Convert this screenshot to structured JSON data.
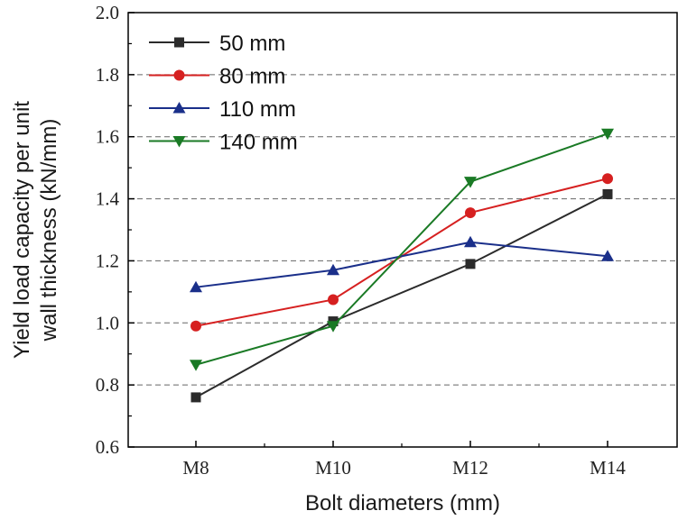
{
  "chart_data": {
    "type": "line",
    "title": "",
    "xlabel": "Bolt diameters (mm)",
    "ylabel_lines": [
      "Yield load capacity per unit",
      "wall thickness (kN/mm)"
    ],
    "categories": [
      "M8",
      "M10",
      "M12",
      "M14"
    ],
    "ylim": [
      0.6,
      2.0
    ],
    "yticks": [
      "0.6",
      "0.8",
      "1.0",
      "1.2",
      "1.4",
      "1.6",
      "1.8",
      "2.0"
    ],
    "grid": "horizontal dashed",
    "legend_position": "top-left",
    "series": [
      {
        "name": "50 mm",
        "color": "#2b2b2b",
        "marker": "square",
        "values": [
          0.76,
          1.005,
          1.19,
          1.415
        ]
      },
      {
        "name": "80 mm",
        "color": "#d62020",
        "marker": "circle",
        "values": [
          0.99,
          1.075,
          1.355,
          1.465
        ]
      },
      {
        "name": "110 mm",
        "color": "#1a2f8a",
        "marker": "triangle-up",
        "values": [
          1.115,
          1.17,
          1.26,
          1.215
        ]
      },
      {
        "name": "140 mm",
        "color": "#1a7a25",
        "marker": "triangle-down",
        "values": [
          0.865,
          0.99,
          1.455,
          1.61
        ]
      }
    ]
  }
}
